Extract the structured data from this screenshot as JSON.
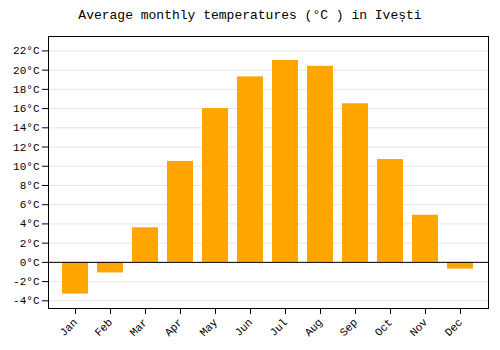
{
  "chart_data": {
    "type": "bar",
    "title": "Average monthly temperatures (°C ) in Ivești",
    "categories": [
      "Jan",
      "Feb",
      "Mar",
      "Apr",
      "May",
      "Jun",
      "Jul",
      "Aug",
      "Sep",
      "Oct",
      "Nov",
      "Dec"
    ],
    "values": [
      -3.3,
      -1.1,
      3.6,
      10.5,
      16.0,
      19.3,
      21.0,
      20.4,
      16.5,
      10.7,
      4.9,
      -0.7
    ],
    "color": "#FFA500",
    "ylim": [
      -4.8,
      23.5
    ],
    "yticks": [
      {
        "value": -4,
        "label": "-4°C"
      },
      {
        "value": -2,
        "label": "-2°C"
      },
      {
        "value": 0,
        "label": "0°C"
      },
      {
        "value": 2,
        "label": "2°C"
      },
      {
        "value": 4,
        "label": "4°C"
      },
      {
        "value": 6,
        "label": "6°C"
      },
      {
        "value": 8,
        "label": "8°C"
      },
      {
        "value": 10,
        "label": "10°C"
      },
      {
        "value": 12,
        "label": "12°C"
      },
      {
        "value": 14,
        "label": "14°C"
      },
      {
        "value": 16,
        "label": "16°C"
      },
      {
        "value": 18,
        "label": "18°C"
      },
      {
        "value": 20,
        "label": "20°C"
      },
      {
        "value": 22,
        "label": "22°C"
      }
    ],
    "grid": true
  }
}
